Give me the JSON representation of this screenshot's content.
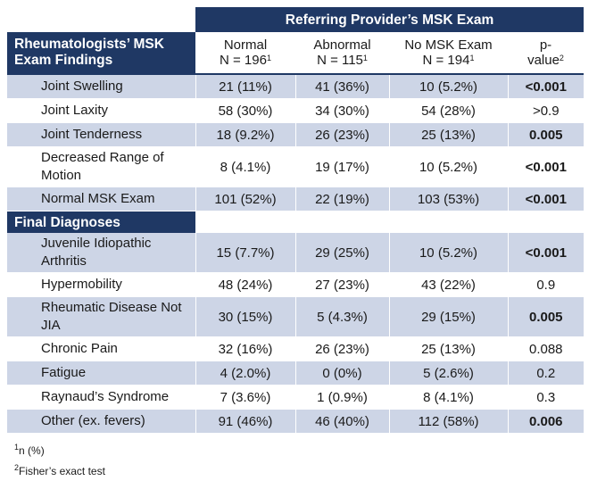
{
  "band_title": "Referring Provider’s MSK Exam",
  "section1_title_line1": "Rheumatologists’ MSK",
  "section1_title_line2": "Exam Findings",
  "columns": [
    {
      "line1": "Normal",
      "line2": "N = 196",
      "sup": "1"
    },
    {
      "line1": "Abnormal",
      "line2": "N = 115",
      "sup": "1"
    },
    {
      "line1": "No MSK Exam",
      "line2": "N = 194",
      "sup": "1"
    },
    {
      "line1": "p-",
      "line2": "value",
      "sup": "2"
    }
  ],
  "section1_rows": [
    {
      "label": "Joint Swelling",
      "normal": "21 (11%)",
      "abnormal": "41 (36%)",
      "no_exam": "10 (5.2%)",
      "p": "<0.001",
      "p_bold": true
    },
    {
      "label": "Joint Laxity",
      "normal": "58 (30%)",
      "abnormal": "34 (30%)",
      "no_exam": "54 (28%)",
      "p": ">0.9",
      "p_bold": false
    },
    {
      "label": "Joint Tenderness",
      "normal": "18 (9.2%)",
      "abnormal": "26 (23%)",
      "no_exam": "25 (13%)",
      "p": "0.005",
      "p_bold": true
    },
    {
      "label": "Decreased Range of Motion",
      "normal": "8 (4.1%)",
      "abnormal": "19 (17%)",
      "no_exam": "10 (5.2%)",
      "p": "<0.001",
      "p_bold": true
    },
    {
      "label": "Normal MSK Exam",
      "normal": "101 (52%)",
      "abnormal": "22 (19%)",
      "no_exam": "103 (53%)",
      "p": "<0.001",
      "p_bold": true
    }
  ],
  "section2_title": "Final Diagnoses",
  "section2_rows": [
    {
      "label": "Juvenile Idiopathic Arthritis",
      "normal": "15 (7.7%)",
      "abnormal": "29 (25%)",
      "no_exam": "10 (5.2%)",
      "p": "<0.001",
      "p_bold": true
    },
    {
      "label": "Hypermobility",
      "normal": "48 (24%)",
      "abnormal": "27 (23%)",
      "no_exam": "43 (22%)",
      "p": "0.9",
      "p_bold": false
    },
    {
      "label": "Rheumatic Disease Not JIA",
      "normal": "30 (15%)",
      "abnormal": "5 (4.3%)",
      "no_exam": "29 (15%)",
      "p": "0.005",
      "p_bold": true
    },
    {
      "label": "Chronic Pain",
      "normal": "32 (16%)",
      "abnormal": "26 (23%)",
      "no_exam": "25 (13%)",
      "p": "0.088",
      "p_bold": false
    },
    {
      "label": "Fatigue",
      "normal": "4 (2.0%)",
      "abnormal": "0 (0%)",
      "no_exam": "5 (2.6%)",
      "p": "0.2",
      "p_bold": false
    },
    {
      "label": "Raynaud’s Syndrome",
      "normal": "7 (3.6%)",
      "abnormal": "1 (0.9%)",
      "no_exam": "8 (4.1%)",
      "p": "0.3",
      "p_bold": false
    },
    {
      "label": "Other (ex. fevers)",
      "normal": "91 (46%)",
      "abnormal": "46 (40%)",
      "no_exam": "112 (58%)",
      "p": "0.006",
      "p_bold": true
    }
  ],
  "footnotes": [
    {
      "sup": "1",
      "text": "n (%)"
    },
    {
      "sup": "2",
      "text": "Fisher’s exact test"
    }
  ]
}
